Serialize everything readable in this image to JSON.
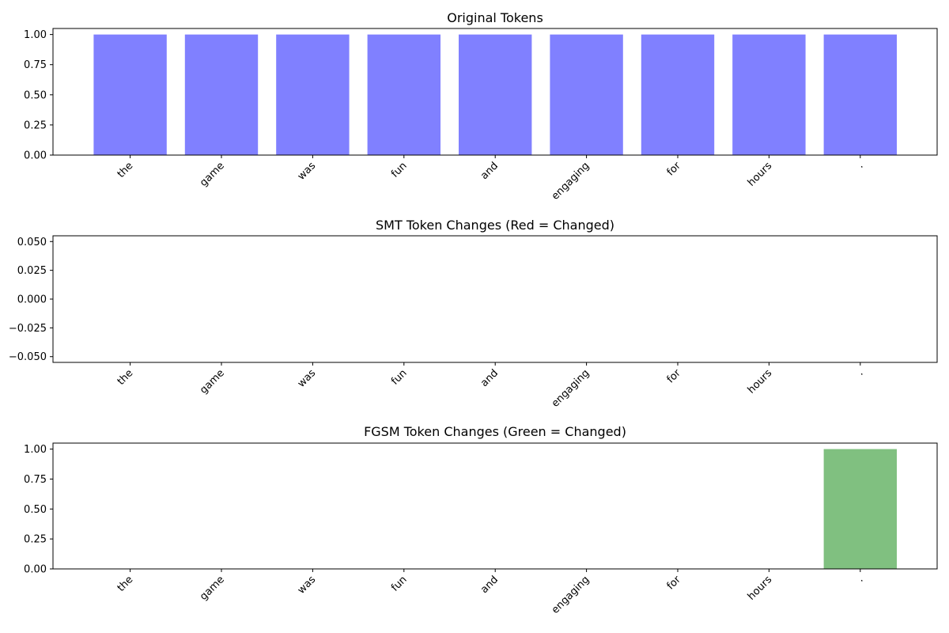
{
  "chart_data": [
    {
      "type": "bar",
      "title": "Original Tokens",
      "categories": [
        "the",
        "game",
        "was",
        "fun",
        "and",
        "engaging",
        "for",
        "hours",
        "."
      ],
      "values": [
        1,
        1,
        1,
        1,
        1,
        1,
        1,
        1,
        1
      ],
      "color": "#8080ff",
      "ylim": [
        0,
        1.05
      ],
      "yticks": [
        "0.00",
        "0.25",
        "0.50",
        "0.75",
        "1.00"
      ],
      "grid": false
    },
    {
      "type": "bar",
      "title": "SMT Token Changes (Red = Changed)",
      "categories": [
        "the",
        "game",
        "was",
        "fun",
        "and",
        "engaging",
        "for",
        "hours",
        "."
      ],
      "values": [
        0,
        0,
        0,
        0,
        0,
        0,
        0,
        0,
        0
      ],
      "color": "#ff8080",
      "ylim": [
        -0.055,
        0.055
      ],
      "yticks": [
        "−0.050",
        "−0.025",
        "0.000",
        "0.025",
        "0.050"
      ],
      "grid": false
    },
    {
      "type": "bar",
      "title": "FGSM Token Changes (Green = Changed)",
      "categories": [
        "the",
        "game",
        "was",
        "fun",
        "and",
        "engaging",
        "for",
        "hours",
        "."
      ],
      "values": [
        0,
        0,
        0,
        0,
        0,
        0,
        0,
        0,
        1
      ],
      "color": "#80c080",
      "ylim": [
        0,
        1.05
      ],
      "yticks": [
        "0.00",
        "0.25",
        "0.50",
        "0.75",
        "1.00"
      ],
      "grid": false
    }
  ]
}
